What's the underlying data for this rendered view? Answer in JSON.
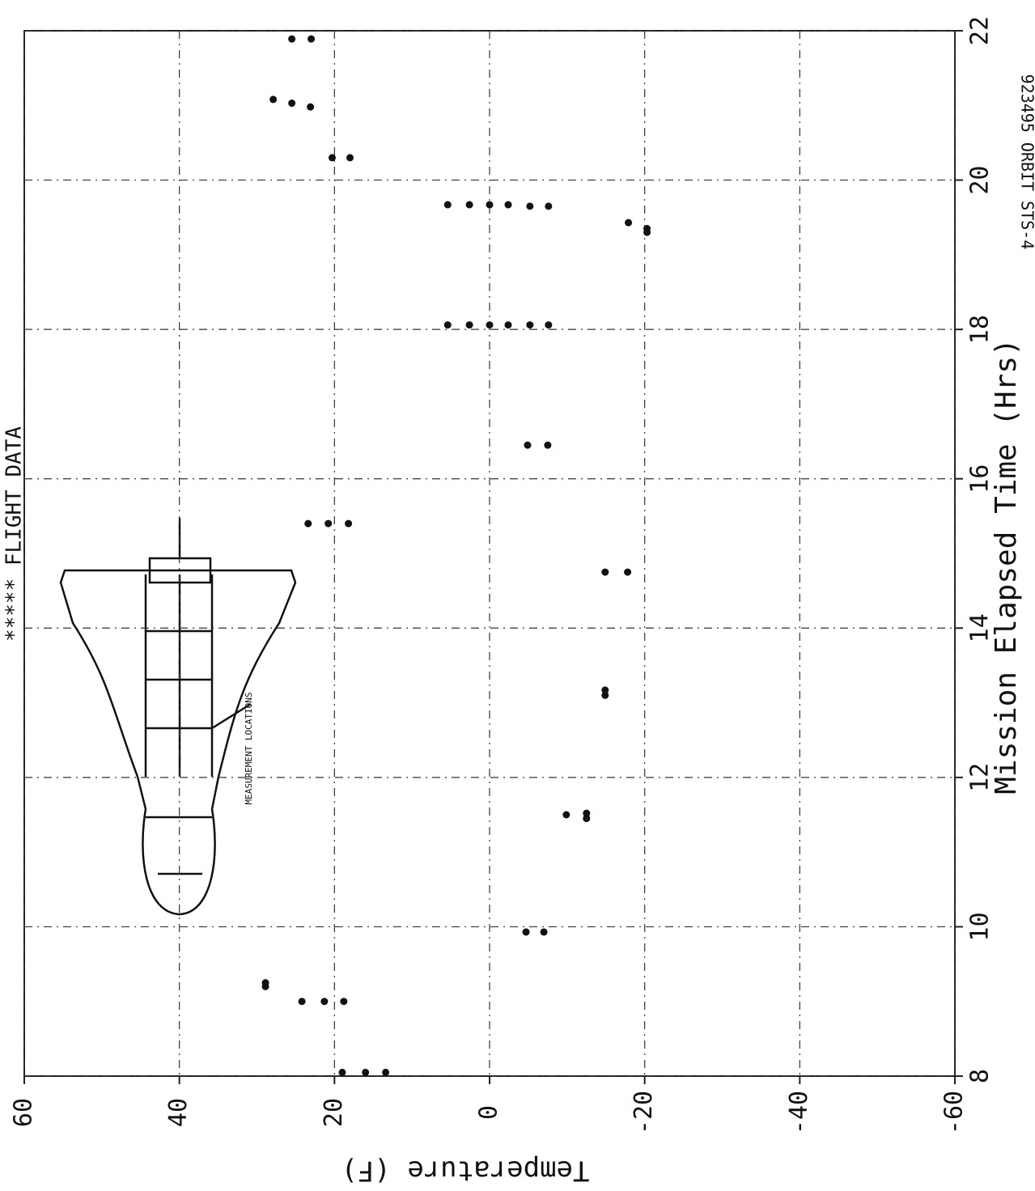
{
  "chart_data": {
    "type": "scatter",
    "title": "***** FLIGHT DATA",
    "x_label": "Mission Elapsed Time (Hrs)",
    "y_label": "Temperature (F)",
    "annotations": [
      "MEASUREMENT LOCATIONS",
      "923495 ORBIT STS-4"
    ],
    "x": [
      8.05,
      8.05,
      8.05,
      9.2,
      9.25,
      9.0,
      9.0,
      9.0,
      9.93,
      9.93,
      11.5,
      11.45,
      11.52,
      13.1,
      13.17,
      14.75,
      14.75,
      15.4,
      15.4,
      15.4,
      16.45,
      16.45,
      18.06,
      18.06,
      18.06,
      18.06,
      18.06,
      18.06,
      19.67,
      19.67,
      19.67,
      19.67,
      19.65,
      19.65,
      19.43,
      19.35,
      19.3,
      20.3,
      20.3,
      21.08,
      21.03,
      20.98,
      21.89,
      21.89
    ],
    "values": [
      19,
      16,
      13.4,
      28.9,
      28.9,
      24.2,
      21.3,
      18.8,
      -4.7,
      -7,
      -9.9,
      -12.5,
      -12.5,
      -14.9,
      -14.9,
      -14.9,
      -17.8,
      23.4,
      20.8,
      18.2,
      -4.9,
      -7.5,
      5.4,
      2.6,
      0,
      -2.4,
      -5.2,
      -7.6,
      5.4,
      2.6,
      0,
      -2.4,
      -5.2,
      -7.6,
      -17.9,
      -20.3,
      -20.3,
      20.3,
      18,
      27.9,
      25.5,
      23.1,
      25.5,
      23
    ],
    "color": "#111111",
    "xlim": [
      8,
      22
    ],
    "xticks": [
      8,
      10,
      12,
      14,
      16,
      18,
      20,
      22
    ],
    "ylim": [
      -60,
      60
    ],
    "yticks": [
      -60,
      -40,
      -20,
      0,
      20,
      40,
      60
    ],
    "grid": true
  }
}
